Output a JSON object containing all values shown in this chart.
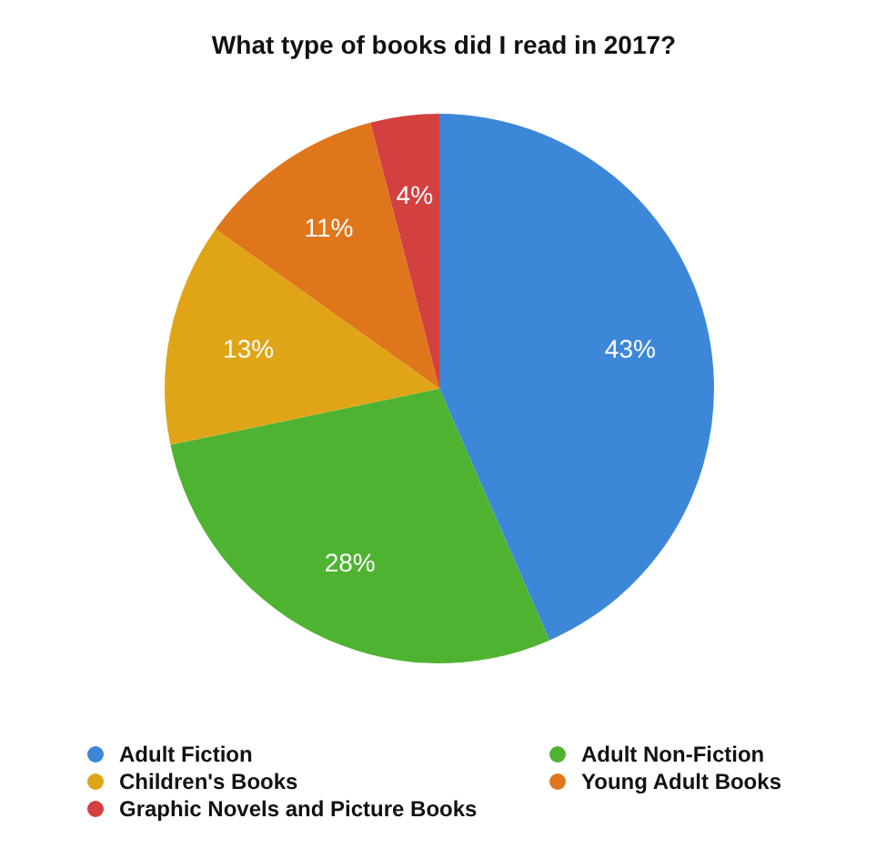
{
  "chart_data": {
    "type": "pie",
    "title": "What type of books did I read in 2017?",
    "categories": [
      "Adult Fiction",
      "Adult Non-Fiction",
      "Children's Books",
      "Young Adult Books",
      "Graphic Novels and Picture Books"
    ],
    "values": [
      43,
      28,
      13,
      11,
      4
    ],
    "colors": [
      "#3d87d9",
      "#4fb332",
      "#dfa517",
      "#e0761c",
      "#d2403f"
    ],
    "value_labels": [
      "43%",
      "28%",
      "13%",
      "11%",
      "4%"
    ],
    "legend": "bottom"
  }
}
